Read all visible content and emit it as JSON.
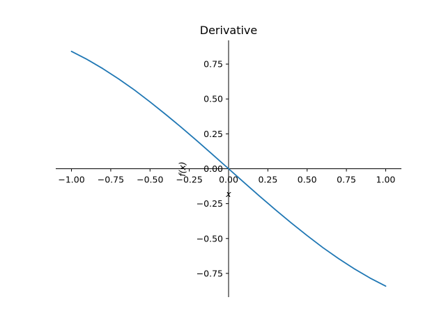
{
  "chart_data": {
    "type": "line",
    "title": "Derivative",
    "xlabel": "x",
    "ylabel": "f(x)",
    "xlim": [
      -1.1,
      1.1
    ],
    "ylim": [
      -0.92,
      0.92
    ],
    "grid": false,
    "x_ticks": [
      -1.0,
      -0.75,
      -0.5,
      -0.25,
      0.0,
      0.25,
      0.5,
      0.75,
      1.0
    ],
    "x_tick_labels": [
      "−1.00",
      "−0.75",
      "−0.50",
      "−0.25",
      "0.00",
      "0.25",
      "0.50",
      "0.75",
      "1.00"
    ],
    "y_ticks": [
      -0.75,
      -0.5,
      -0.25,
      0.0,
      0.25,
      0.5,
      0.75
    ],
    "y_tick_labels": [
      "−0.75",
      "−0.50",
      "−0.25",
      "0.00",
      "0.25",
      "0.50",
      "0.75"
    ],
    "series": [
      {
        "color": "#1f77b4",
        "x": [
          -1.0,
          -0.9,
          -0.8,
          -0.7,
          -0.6,
          -0.5,
          -0.4,
          -0.3,
          -0.2,
          -0.1,
          0.0,
          0.1,
          0.2,
          0.3,
          0.4,
          0.5,
          0.6,
          0.7,
          0.8,
          0.9,
          1.0
        ],
        "y": [
          0.841,
          0.783,
          0.717,
          0.644,
          0.565,
          0.479,
          0.389,
          0.296,
          0.199,
          0.1,
          0.0,
          -0.1,
          -0.199,
          -0.296,
          -0.389,
          -0.479,
          -0.565,
          -0.644,
          -0.717,
          -0.783,
          -0.841
        ]
      }
    ]
  }
}
